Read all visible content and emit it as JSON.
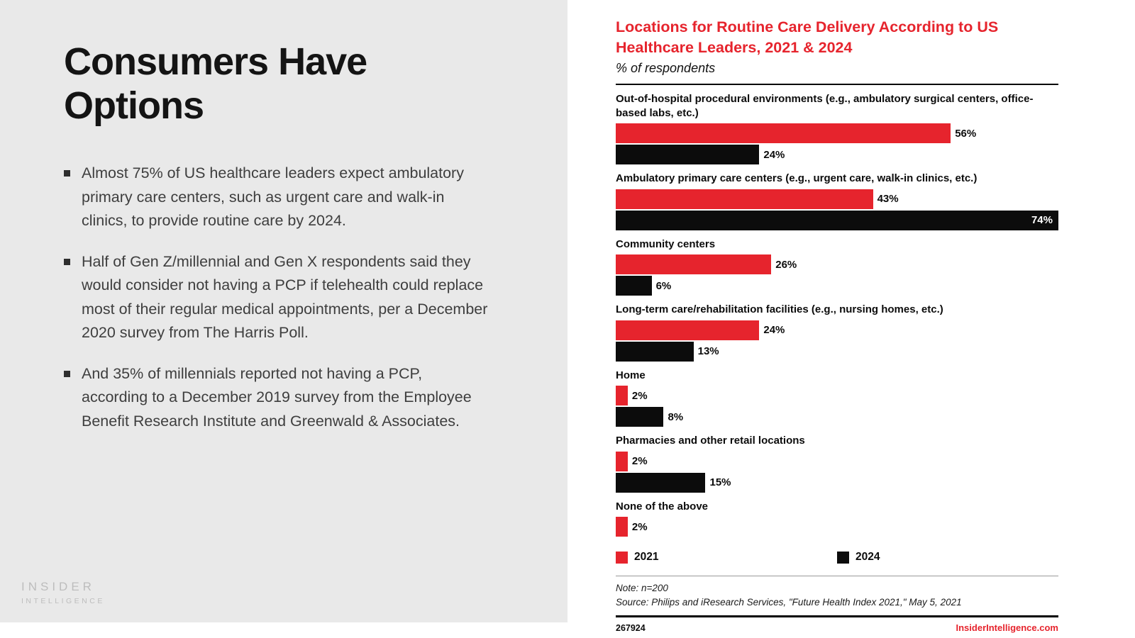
{
  "left_panel": {
    "title": "Consumers Have Options",
    "bullets": [
      "Almost 75% of US healthcare leaders expect ambulatory primary care centers, such as urgent care and walk-in clinics, to provide routine care by 2024.",
      "Half of Gen Z/millennial and Gen X respondents said they would consider not having a PCP if telehealth could replace most of their regular medical appointments, per a December 2020 survey from The Harris Poll.",
      "And 35% of millennials reported not having a PCP, according to a December 2019 survey from the Employee Benefit Research Institute and Greenwald & Associates."
    ],
    "logo": {
      "line1": "INSIDER",
      "line2": "INTELLIGENCE"
    }
  },
  "chart_meta": {
    "note": "Note: n=200",
    "source": "Source: Philips and iResearch Services, \"Future Health Index 2021,\" May 5, 2021",
    "chart_id": "267924",
    "site": "InsiderIntelligence.com"
  },
  "chart_data": {
    "type": "bar",
    "orientation": "horizontal",
    "title": "Locations for Routine Care Delivery According to US Healthcare Leaders, 2021 & 2024",
    "subtitle": "% of respondents",
    "categories": [
      "Out-of-hospital procedural environments (e.g., ambulatory surgical centers, office-based labs, etc.)",
      "Ambulatory primary care centers (e.g., urgent care, walk-in clinics, etc.)",
      "Community centers",
      "Long-term care/rehabilitation facilities (e.g., nursing homes, etc.)",
      "Home",
      "Pharmacies and other retail locations",
      "None of the above"
    ],
    "series": [
      {
        "name": "2021",
        "color": "#e6242d",
        "values": [
          56,
          43,
          26,
          24,
          2,
          2,
          2
        ]
      },
      {
        "name": "2024",
        "color": "#0c0c0c",
        "values": [
          24,
          74,
          6,
          13,
          8,
          15,
          null
        ]
      }
    ],
    "xmax": 74,
    "value_suffix": "%",
    "xlabel": "",
    "ylabel": "",
    "grid": false,
    "legend_position": "bottom"
  }
}
